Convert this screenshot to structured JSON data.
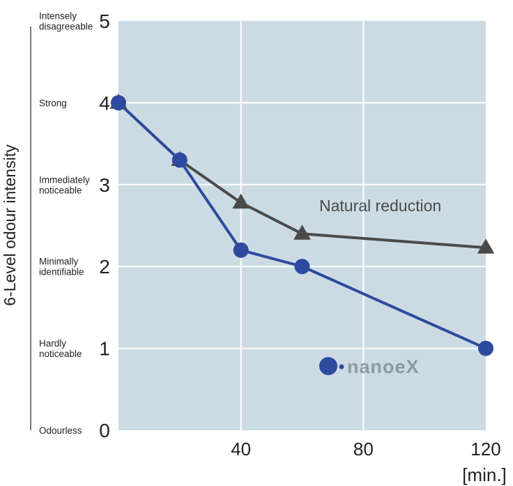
{
  "chart_data": {
    "type": "line",
    "ylabel": "6-Level odour intensity",
    "x_unit": "[min.]",
    "xlim": [
      0,
      120
    ],
    "ylim": [
      0,
      5
    ],
    "x_ticks": [
      40,
      80,
      120
    ],
    "y_ticks": [
      0,
      1,
      2,
      3,
      4,
      5
    ],
    "grid": true,
    "level_labels": [
      {
        "level": 5,
        "lines": [
          "Intensely",
          "disagreeable"
        ]
      },
      {
        "level": 4,
        "lines": [
          "Strong"
        ]
      },
      {
        "level": 3,
        "lines": [
          "Immediately",
          "noticeable"
        ]
      },
      {
        "level": 2,
        "lines": [
          "Minimally",
          "identifiable"
        ]
      },
      {
        "level": 1,
        "lines": [
          "Hardly",
          "noticeable"
        ]
      },
      {
        "level": 0,
        "lines": [
          "Odourless"
        ]
      }
    ],
    "series": [
      {
        "name": "Natural reduction",
        "marker": "triangle",
        "color": "#4a4a4a",
        "points": [
          [
            0,
            4.0
          ],
          [
            20,
            3.3
          ],
          [
            40,
            2.78
          ],
          [
            60,
            2.4
          ],
          [
            120,
            2.23
          ]
        ]
      },
      {
        "name": "nanoeX",
        "marker": "circle",
        "color": "#2d4a9e",
        "points": [
          [
            0,
            4.0
          ],
          [
            20,
            3.3
          ],
          [
            40,
            2.2
          ],
          [
            60,
            2.0
          ],
          [
            120,
            1.0
          ]
        ]
      }
    ]
  },
  "logo": {
    "text": "nanoeX"
  },
  "colors": {
    "plot_background": "#ccdbe3",
    "grid": "#ffffff",
    "natural": "#4a4a4a",
    "nanoe": "#2d4a9e"
  }
}
